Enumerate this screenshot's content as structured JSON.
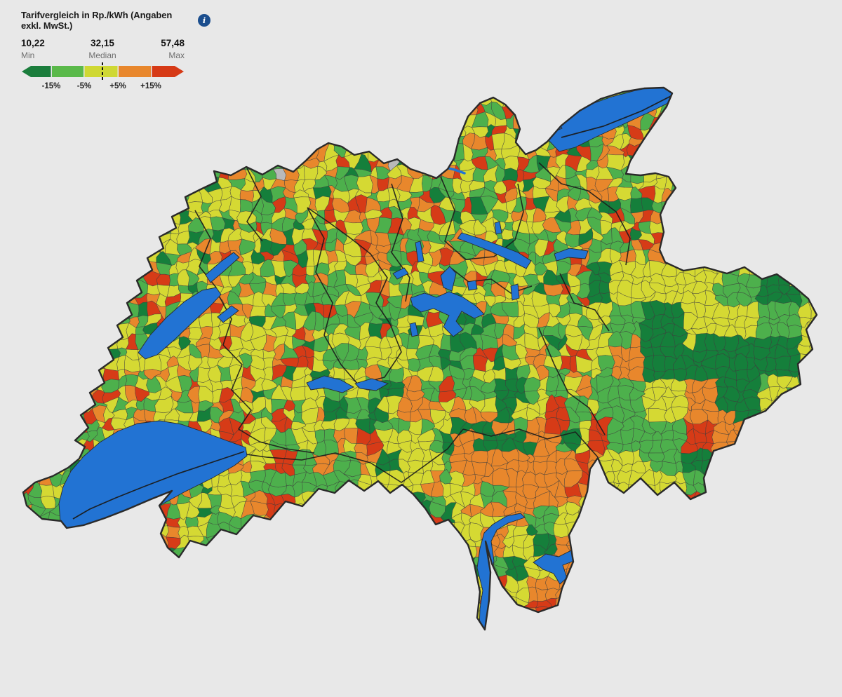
{
  "legend": {
    "title": "Tarifvergleich in Rp./kWh (Angaben exkl. MwSt.)",
    "info_icon": "i",
    "min": {
      "value": "10,22",
      "label": "Min"
    },
    "median": {
      "value": "32,15",
      "label": "Median"
    },
    "max": {
      "value": "57,48",
      "label": "Max"
    },
    "scale": {
      "labels": [
        "-15%",
        "-5%",
        "+5%",
        "+15%"
      ],
      "colors": [
        "#1b7d3c",
        "#5ab94a",
        "#cfd833",
        "#e8872c",
        "#d63a16"
      ]
    }
  },
  "map": {
    "palette": {
      "dark_green": "#157f3b",
      "green": "#4db04c",
      "yellow": "#d5d933",
      "orange": "#e8872c",
      "red": "#d63b17",
      "no_data": "#b9b9b9",
      "lake": "#2273d3",
      "cell_border": "#3c3c3c",
      "canton_border": "#1b1b1b",
      "country_border": "#2a2a2a",
      "background": "#e8e8e8",
      "median_dash": "#111111",
      "info_icon_bg": "#1b4e8e"
    }
  }
}
